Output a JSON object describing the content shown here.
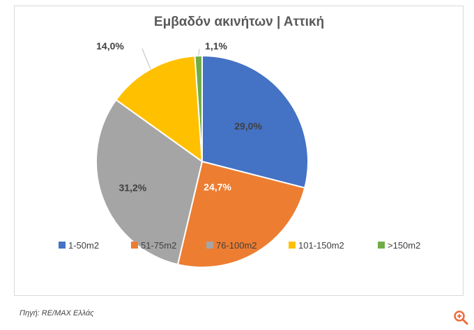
{
  "caption": "Πηγή: RE/MAX Ελλάς",
  "zoom_icon": "zoom-in-icon",
  "colors": {
    "accent": "#ef6b3c"
  },
  "chart_data": {
    "type": "pie",
    "title": "Εμβαδόν ακινήτων | Αττική",
    "categories": [
      "1-50m2",
      "51-75m2",
      "76-100m2",
      "101-150m2",
      ">150m2"
    ],
    "values": [
      29.0,
      24.7,
      31.2,
      14.0,
      1.1
    ],
    "labels": [
      "29,0%",
      "24,7%",
      "31,2%",
      "14,0%",
      "1,1%"
    ],
    "colors": [
      "#4472c4",
      "#ed7d31",
      "#a5a5a5",
      "#ffc000",
      "#70ad47"
    ],
    "legend": "bottom"
  }
}
